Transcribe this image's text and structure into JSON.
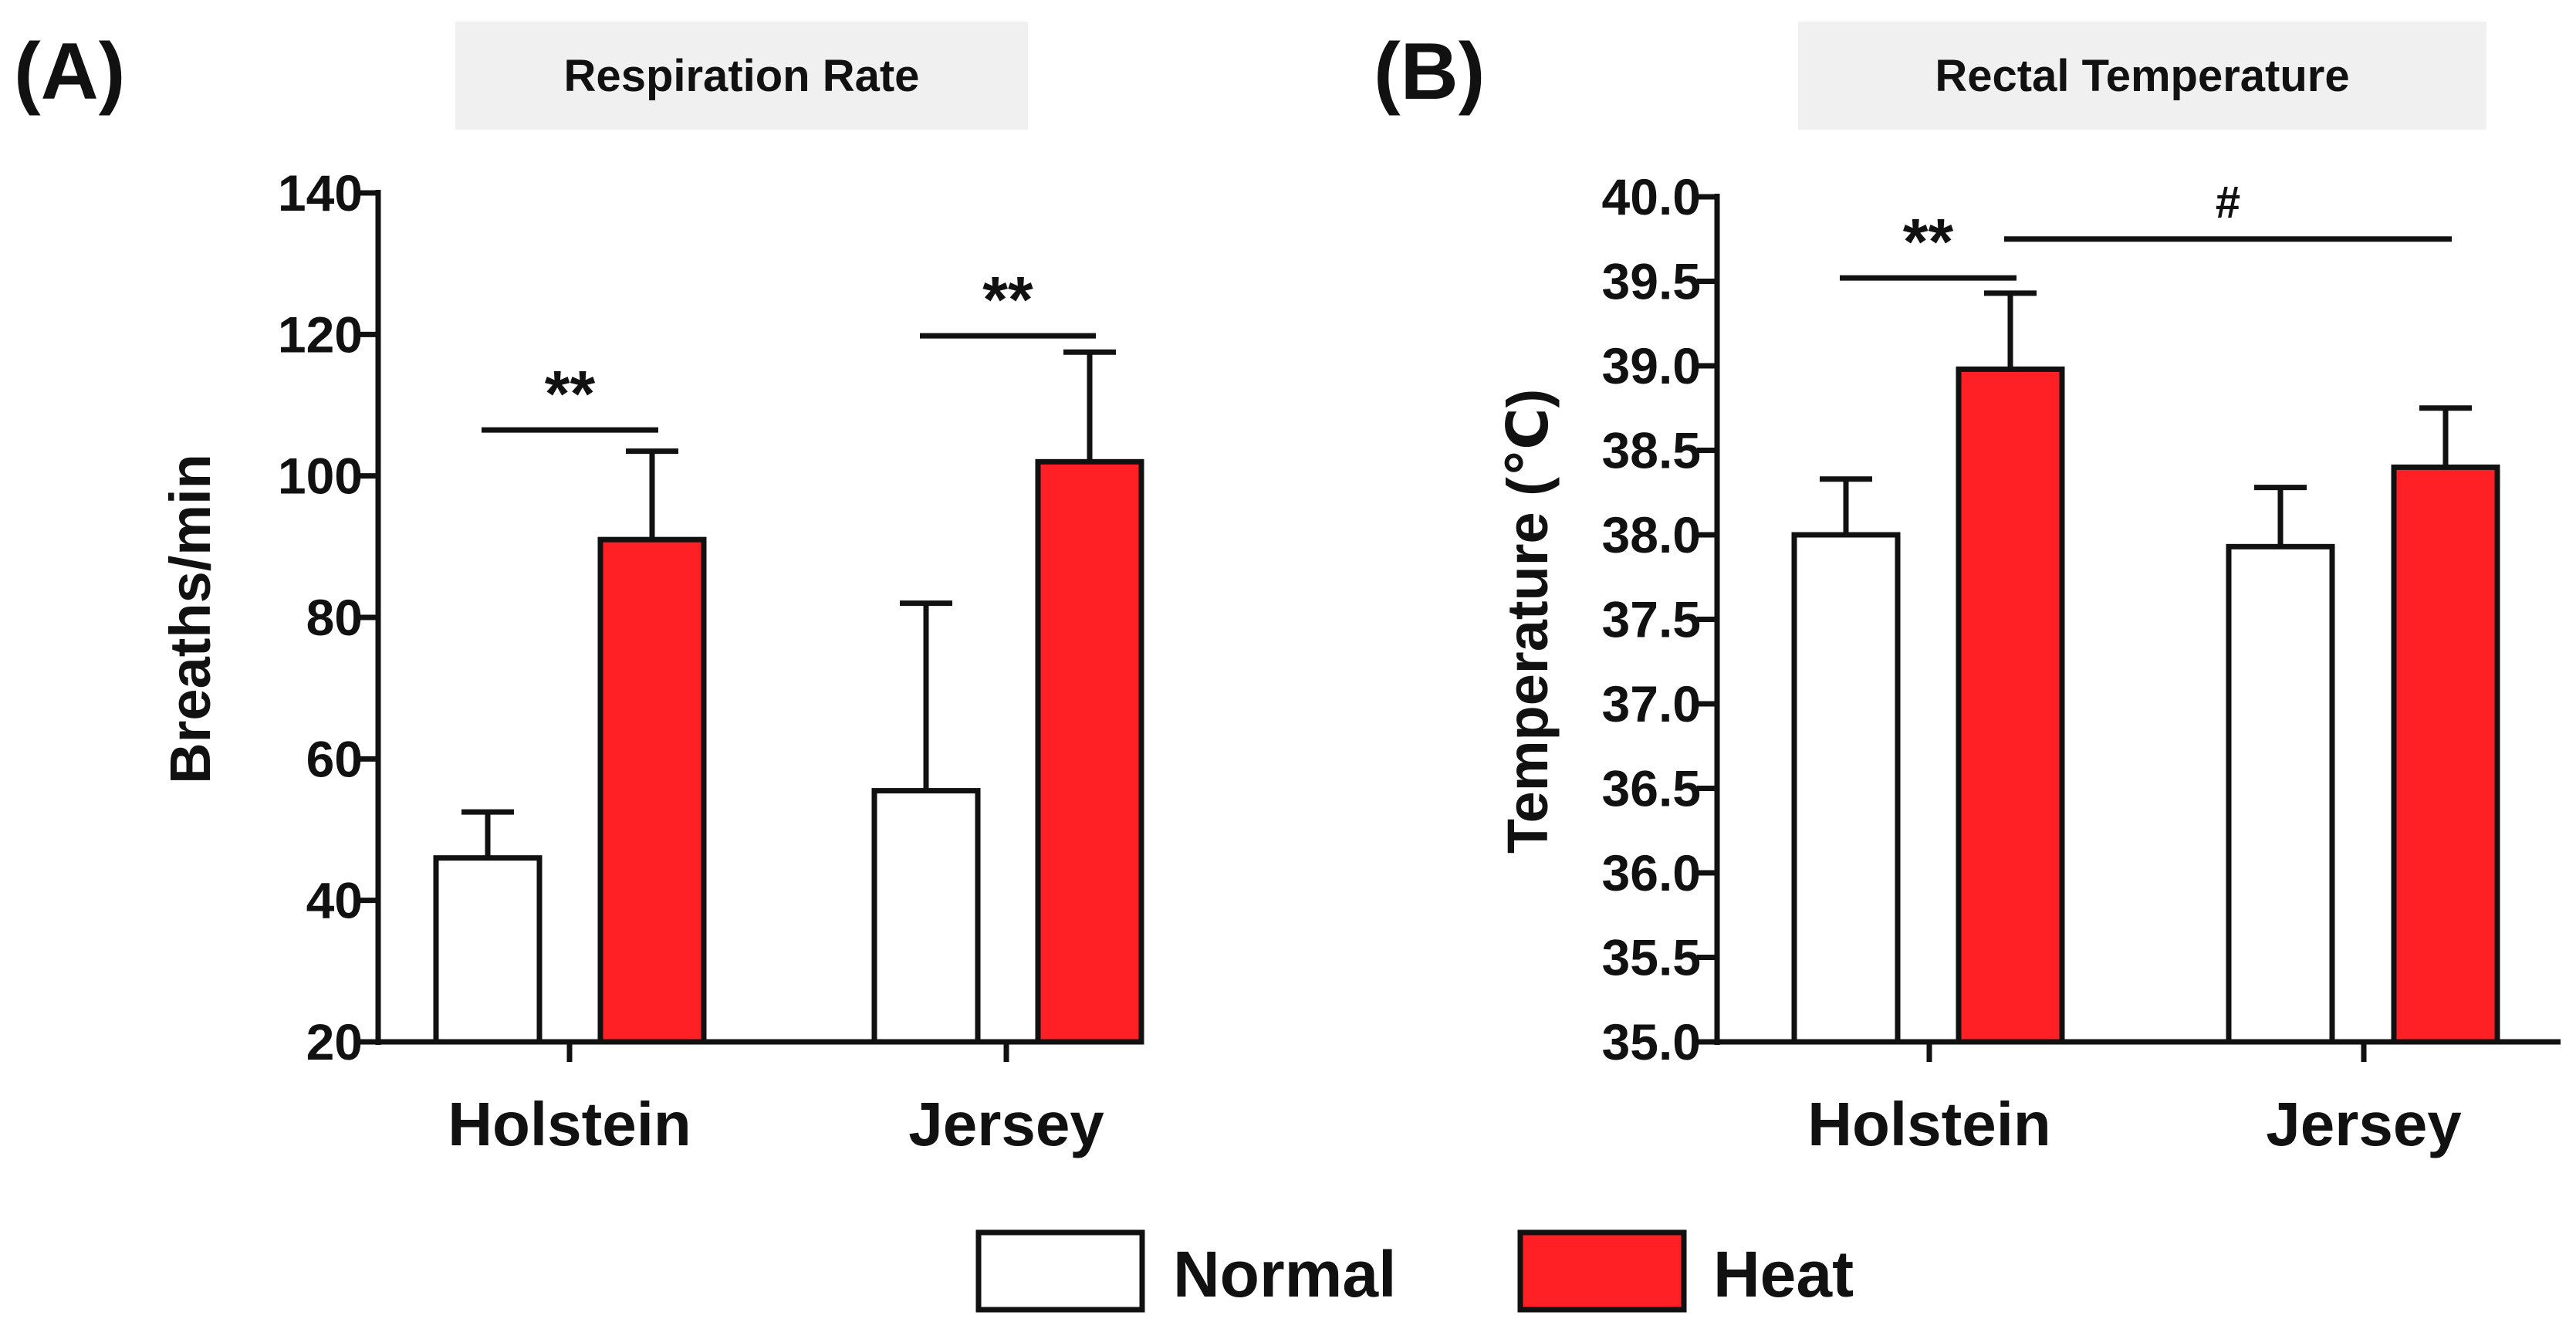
{
  "colors": {
    "normal": "#ffffff",
    "heat": "#ff2026",
    "ink": "#111111",
    "title_box": "#f0f0f0"
  },
  "legend": [
    {
      "name": "Normal",
      "color": "#ffffff"
    },
    {
      "name": "Heat",
      "color": "#ff2026"
    }
  ],
  "chart_data": [
    {
      "panel": "(A)",
      "type": "bar",
      "title": "Respiration Rate",
      "ylabel": "Breaths/min",
      "xlabel": "",
      "categories": [
        "Holstein",
        "Jersey"
      ],
      "ylim": [
        20,
        140
      ],
      "yticks": [
        "20",
        "40",
        "60",
        "80",
        "100",
        "120",
        "140"
      ],
      "series": [
        {
          "name": "Normal",
          "values": [
            46,
            55.5
          ],
          "errors": [
            6.5,
            26.5
          ]
        },
        {
          "name": "Heat",
          "values": [
            91,
            102
          ],
          "errors": [
            12.5,
            15.5
          ]
        }
      ],
      "annotations": [
        {
          "text": "**",
          "from": [
            0,
            0
          ],
          "to": [
            0,
            1
          ],
          "y": 106.5
        },
        {
          "text": "**",
          "from": [
            1,
            0
          ],
          "to": [
            1,
            1
          ],
          "y": 119.8
        }
      ]
    },
    {
      "panel": "(B)",
      "type": "bar",
      "title": "Rectal Temperature",
      "ylabel": "Temperature (℃)",
      "xlabel": "",
      "categories": [
        "Holstein",
        "Jersey"
      ],
      "ylim": [
        35.0,
        40.0
      ],
      "yticks": [
        "35.0",
        "35.5",
        "36.0",
        "36.5",
        "37.0",
        "37.5",
        "38.0",
        "38.5",
        "39.0",
        "39.5",
        "40.0"
      ],
      "series": [
        {
          "name": "Normal",
          "values": [
            38.0,
            37.93
          ],
          "errors": [
            0.33,
            0.35
          ]
        },
        {
          "name": "Heat",
          "values": [
            38.98,
            38.4
          ],
          "errors": [
            0.45,
            0.35
          ]
        }
      ],
      "annotations": [
        {
          "text": "**",
          "from": [
            0,
            0
          ],
          "to": [
            0,
            1
          ],
          "y": 39.52
        },
        {
          "text": "#",
          "from": [
            0,
            1
          ],
          "to": [
            1,
            1
          ],
          "y": 39.75
        }
      ]
    }
  ]
}
